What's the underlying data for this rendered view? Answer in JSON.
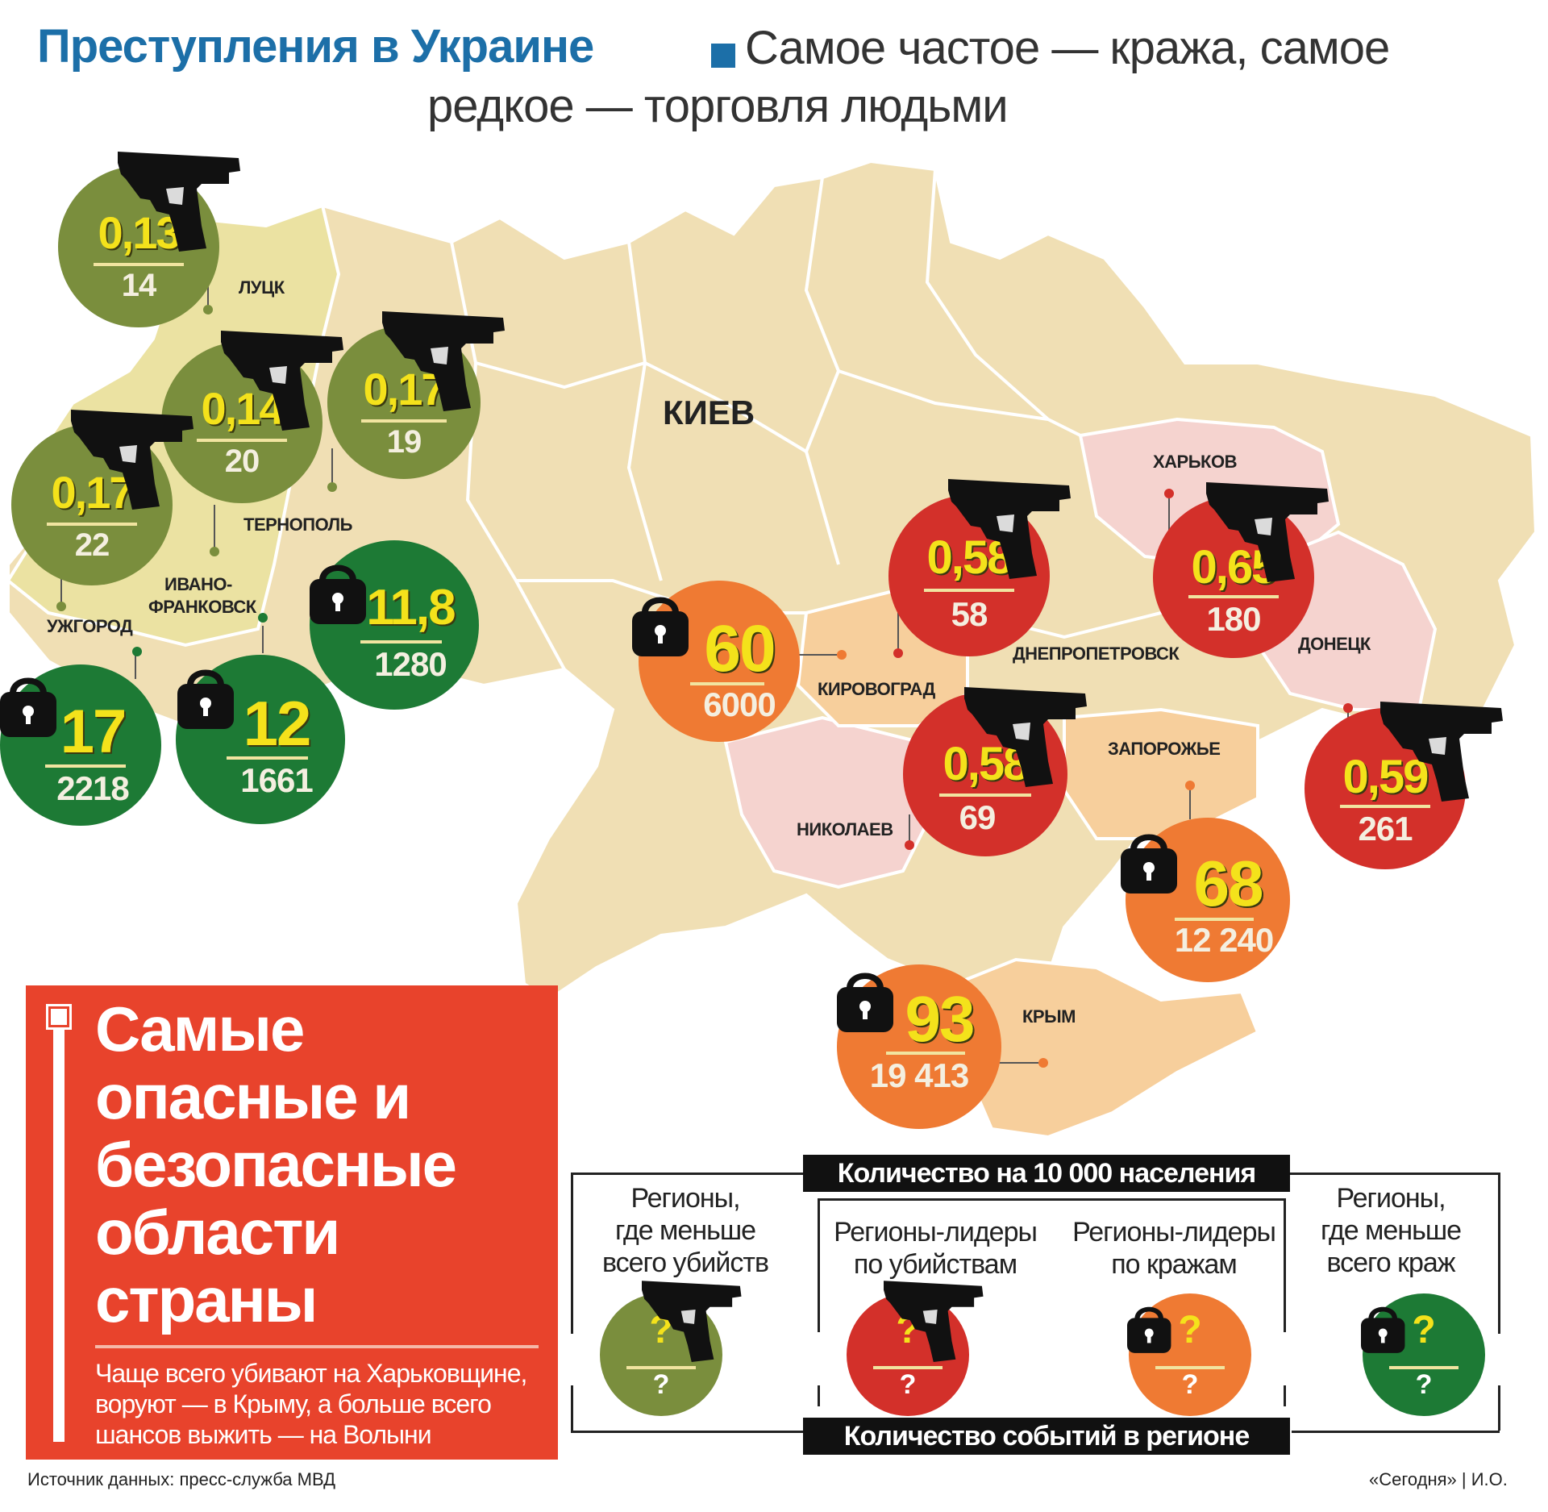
{
  "title": {
    "bold": "Преступления в Украине",
    "rest_line1": "Самое частое — кража, самое",
    "rest_line2": "редкое — торговля людьми"
  },
  "cities": {
    "lutsk": "ЛУЦК",
    "ternopol": "ТЕРНОПОЛЬ",
    "ivano_1": "ИВАНО-",
    "ivano_2": "ФРАНКОВСК",
    "uzhgorod": "УЖГОРОД",
    "kiev": "КИЕВ",
    "kharkov": "ХАРЬКОВ",
    "kirovograd": "КИРОВОГРАД",
    "dnepropetrovsk": "ДНЕПРОПЕТРОВСК",
    "donetsk": "ДОНЕЦК",
    "zaporozhye": "ЗАПОРОЖЬЕ",
    "nikolaev": "НИКОЛАЕВ",
    "krym": "КРЫМ"
  },
  "badges": {
    "lutsk_murder": {
      "rate": "0,13",
      "count": "14"
    },
    "west_murder_a": {
      "rate": "0,14",
      "count": "20"
    },
    "west_murder_b": {
      "rate": "0,17",
      "count": "19"
    },
    "uzhgorod_murder": {
      "rate": "0,17",
      "count": "22"
    },
    "ternopol_theft": {
      "rate": "11,8",
      "count": "1280"
    },
    "uzhgorod_theft": {
      "rate": "17",
      "count": "2218"
    },
    "ivano_theft": {
      "rate": "12",
      "count": "1661"
    },
    "kirovograd_theft": {
      "rate": "60",
      "count": "6000"
    },
    "dnepro_murder": {
      "rate": "0,58",
      "count": "58"
    },
    "kharkov_murder": {
      "rate": "0,65",
      "count": "180"
    },
    "nikolaev_murder": {
      "rate": "0,58",
      "count": "69"
    },
    "donetsk_murder": {
      "rate": "0,59",
      "count": "261"
    },
    "zaporozhye_theft": {
      "rate": "68",
      "count": "12 240"
    },
    "krym_theft": {
      "rate": "93",
      "count": "19 413"
    }
  },
  "panel": {
    "title_lines": [
      "Самые",
      "опасные и",
      "безопасные",
      "области",
      "страны"
    ],
    "text_lines": [
      "Чаще всего убивают на Харьковщине,",
      "воруют — в Крыму, а больше всего",
      "шансов выжить — на Волыни"
    ]
  },
  "legend": {
    "top_bar": "Количество на 10 000 населения",
    "bottom_bar": "Количество событий в регионе",
    "captions": [
      [
        "Регионы,",
        "где меньше",
        "всего убийств"
      ],
      [
        "Регионы-лидеры",
        "по убийствам"
      ],
      [
        "Регионы-лидеры",
        "по кражам"
      ],
      [
        "Регионы,",
        "где меньше",
        "всего краж"
      ]
    ],
    "q": "?"
  },
  "footer": {
    "source": "Источник данных: пресс-служба МВД",
    "credit": "«Сегодня» | И.О."
  },
  "colors": {
    "map_land": "#f0dfb4",
    "west_region": "#ebe2a2",
    "pink_region": "#f5d3cf",
    "orange_region": "#f7cf9c",
    "green_light": "#7a8e3d",
    "green_dark": "#1d7a35",
    "red": "#d3302a",
    "orange": "#ef7a33",
    "title_blue": "#1c6fa8"
  },
  "icons": [
    "pistol-icon",
    "padlock-icon"
  ]
}
